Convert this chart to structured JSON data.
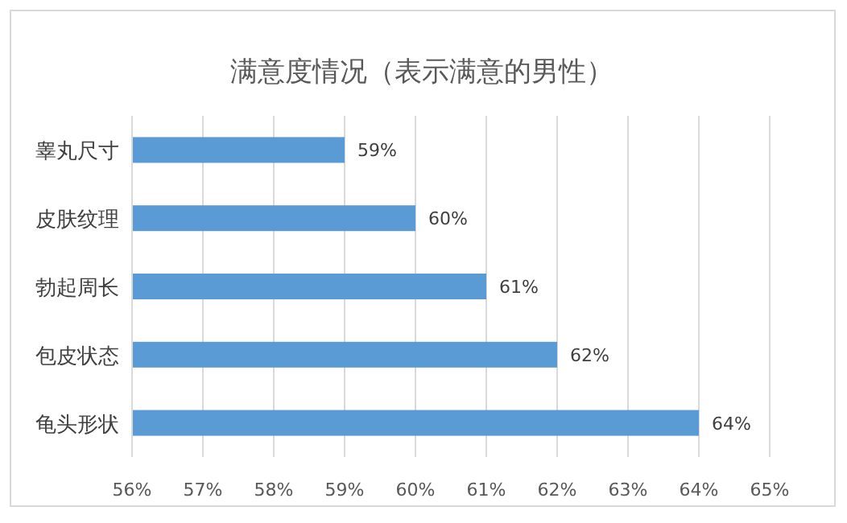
{
  "chart_data": {
    "type": "bar",
    "orientation": "horizontal",
    "title": "满意度情况（表示满意的男性）",
    "categories": [
      "睾丸尺寸",
      "皮肤纹理",
      "勃起周长",
      "包皮状态",
      "龟头形状"
    ],
    "values": [
      59,
      60,
      61,
      62,
      64
    ],
    "color": "#5b9bd5",
    "value_labels": [
      "59%",
      "60%",
      "61%",
      "62%",
      "64%"
    ],
    "xlim": [
      56,
      65
    ],
    "xticks": [
      {
        "value": 56,
        "label": "56%"
      },
      {
        "value": 57,
        "label": "57%"
      },
      {
        "value": 58,
        "label": "58%"
      },
      {
        "value": 59,
        "label": "59%"
      },
      {
        "value": 60,
        "label": "60%"
      },
      {
        "value": 61,
        "label": "61%"
      },
      {
        "value": 62,
        "label": "62%"
      },
      {
        "value": 63,
        "label": "63%"
      },
      {
        "value": 64,
        "label": "64%"
      },
      {
        "value": 65,
        "label": "65%"
      }
    ],
    "grid": "x"
  }
}
